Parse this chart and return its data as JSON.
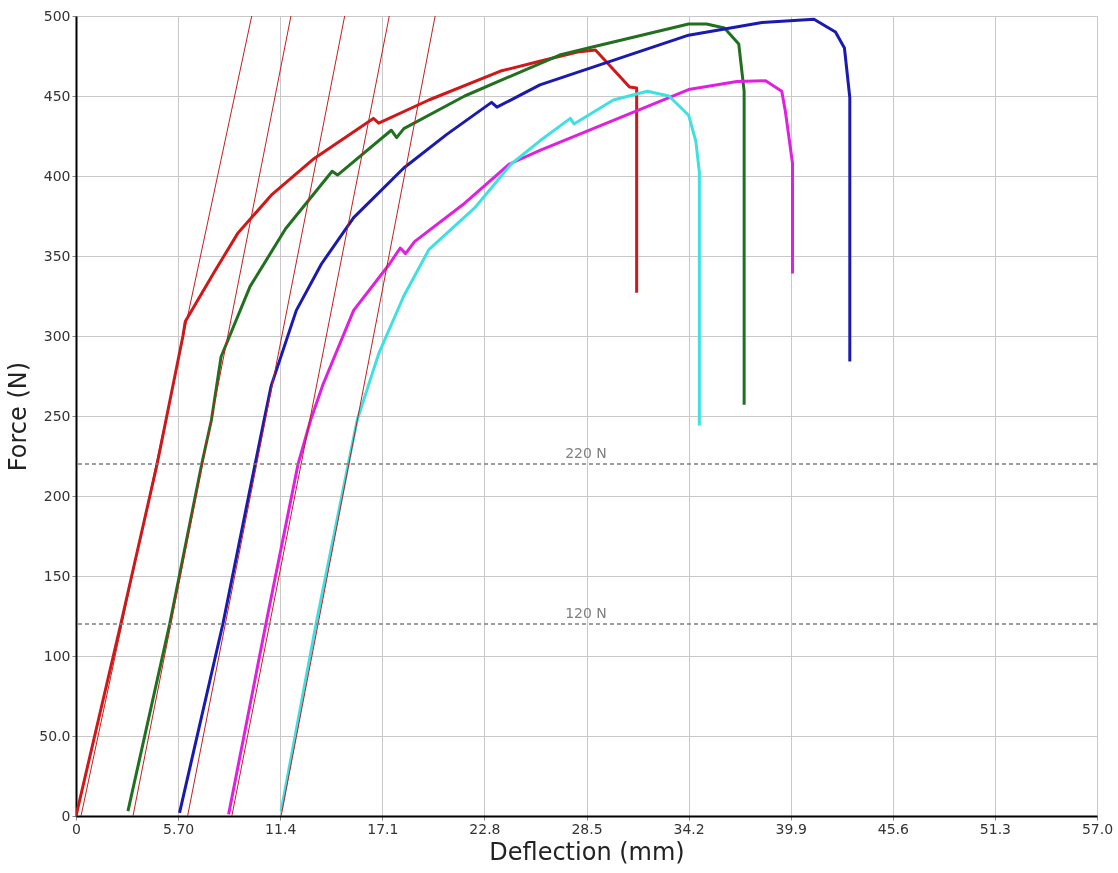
{
  "chart_data": {
    "type": "line",
    "xlabel": "Deflection (mm)",
    "ylabel": "Force (N)",
    "xlim": [
      0,
      57
    ],
    "ylim": [
      0,
      500
    ],
    "xticks": [
      0,
      {
        "value": 5.7,
        "label": "5.70"
      },
      11.4,
      17.1,
      22.8,
      28.5,
      34.2,
      39.9,
      45.6,
      51.3,
      {
        "value": 57,
        "label": "57.0"
      }
    ],
    "yticks": [
      0,
      {
        "value": 50,
        "label": "50.0"
      },
      100,
      150,
      200,
      250,
      300,
      350,
      400,
      450,
      500
    ],
    "grid": true,
    "marker": "none",
    "line_style": "solid",
    "ref_lines": [
      {
        "axis": "y",
        "value": 220,
        "label": "220 N",
        "color": "#808080",
        "line_style": "dashed"
      },
      {
        "axis": "y",
        "value": 120,
        "label": "120 N",
        "color": "#808080",
        "line_style": "dashed"
      }
    ],
    "series": [
      {
        "color": "#d01818",
        "x": [
          0,
          2.5,
          4.53,
          5.97,
          6.1,
          7.72,
          9.02,
          10.9,
          13.3,
          16.6,
          16.9,
          19.7,
          23.7,
          26,
          28,
          29.0,
          30.9,
          31.3,
          31.3,
          31.3,
          31.3
        ],
        "values": [
          0,
          120,
          220,
          300,
          309,
          340,
          364,
          388,
          411,
          436,
          433,
          447.5,
          465.6,
          472,
          477.5,
          478.8,
          455.6,
          455,
          403,
          378,
          327
        ]
      },
      {
        "color": "#207020",
        "x": [
          2.9,
          5.23,
          7.02,
          7.56,
          8.1,
          9.72,
          11.7,
          14.3,
          14.6,
          17.6,
          17.9,
          18.3,
          21.7,
          27.0,
          28.6,
          34.2,
          35.2,
          36.2,
          37.0,
          37.3,
          37.3,
          37.3,
          37.3,
          37.3
        ],
        "values": [
          3,
          120,
          220,
          247.5,
          287,
          331,
          367,
          403,
          400.6,
          428.6,
          424,
          429.6,
          450,
          475.6,
          480,
          495,
          495,
          492.5,
          482.5,
          453,
          428,
          377,
          317,
          257
        ]
      },
      {
        "color": "#1a1ab0",
        "x": [
          5.78,
          8.2,
          10.0,
          10.5,
          10.9,
          12.3,
          13.7,
          15.5,
          18.3,
          20.7,
          23.2,
          23.5,
          25.9,
          34.2,
          38.3,
          41.2,
          42.4,
          42.9,
          43.2,
          43.2,
          43.2,
          43.2,
          43.2
        ],
        "values": [
          2,
          120,
          220,
          247.5,
          269,
          316,
          345,
          374,
          405,
          426,
          446,
          443,
          457,
          488,
          496,
          498,
          490,
          480,
          449,
          432.5,
          398,
          341,
          284
        ]
      },
      {
        "color": "#e020e0",
        "x": [
          8.52,
          10.6,
          12.4,
          13.1,
          13.8,
          15.5,
          17.5,
          18.1,
          18.4,
          18.9,
          21.7,
          24.2,
          25.9,
          34.2,
          36.9,
          38.5,
          39.4,
          39.6,
          40.0,
          40.0,
          40.0,
          40.0
        ],
        "values": [
          1,
          120,
          220,
          247.5,
          270,
          316,
          345,
          355,
          351.5,
          359,
          383,
          407.5,
          416,
          454,
          459,
          459.5,
          453,
          440.6,
          408,
          391,
          380.6,
          339
        ]
      },
      {
        "color": "#40e0e0",
        "x": [
          11.45,
          13.4,
          15.2,
          15.7,
          16.9,
          18.3,
          19.7,
          22.3,
          24.3,
          25.9,
          27.6,
          27.8,
          30.0,
          31.9,
          33.1,
          34.2,
          34.6,
          34.8,
          34.8,
          34.8,
          34.8
        ],
        "values": [
          3,
          120,
          220,
          247.5,
          289,
          325,
          354,
          380.6,
          407.5,
          422,
          436,
          432.5,
          447.5,
          453,
          450,
          438,
          422,
          402.5,
          355,
          299,
          244
        ]
      },
      {
        "color": "#c02020",
        "x": [
          0.28,
          9.81
        ],
        "values": [
          0,
          500
        ]
      },
      {
        "color": "#c02020",
        "x": [
          3.18,
          12.0
        ],
        "values": [
          0,
          500
        ]
      },
      {
        "color": "#c02020",
        "x": [
          6.23,
          15.0
        ],
        "values": [
          0,
          500
        ]
      },
      {
        "color": "#c02020",
        "x": [
          8.7,
          17.49
        ],
        "values": [
          0,
          500
        ]
      },
      {
        "color": "#c02020",
        "x": [
          11.45,
          20.05
        ],
        "values": [
          0,
          500
        ]
      }
    ]
  }
}
